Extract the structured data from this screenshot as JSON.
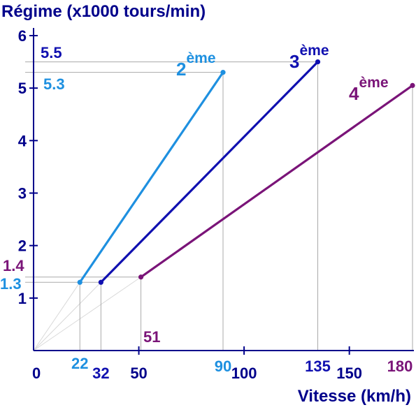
{
  "chart_data": {
    "type": "line",
    "title": "Régime (x1000 tours/min)",
    "xlabel": "Vitesse (km/h)",
    "ylabel": "Régime (x1000 tours/min)",
    "xlim": [
      0,
      180
    ],
    "ylim": [
      0,
      6
    ],
    "x_ticks": [
      "0",
      "50",
      "100",
      "150"
    ],
    "y_ticks": [
      "1",
      "2",
      "3",
      "4",
      "5",
      "6"
    ],
    "series": [
      {
        "name": "2ème",
        "name_base": "2",
        "name_sup": "ème",
        "color": "#1e90e0",
        "x": [
          22,
          90
        ],
        "y": [
          1.3,
          5.3
        ],
        "x_labels": [
          "22",
          "90"
        ],
        "y_labels": [
          "1.3",
          "5.3"
        ]
      },
      {
        "name": "3ème",
        "name_base": "3",
        "name_sup": "ème",
        "color": "#1010b0",
        "x": [
          32,
          135
        ],
        "y": [
          1.3,
          5.5
        ],
        "x_labels": [
          "32",
          "135"
        ],
        "y_labels": [
          "5.5"
        ]
      },
      {
        "name": "4ème",
        "name_base": "4",
        "name_sup": "ème",
        "color": "#7a1478",
        "x": [
          51,
          180
        ],
        "y": [
          1.4,
          5.05
        ],
        "x_labels": [
          "51",
          "180"
        ],
        "y_labels": [
          "1.4"
        ]
      }
    ],
    "axis_color": "#00008b",
    "guide_color": "#aaaaaa",
    "origin_ray_color": "#d9d9d9",
    "grid": false
  }
}
